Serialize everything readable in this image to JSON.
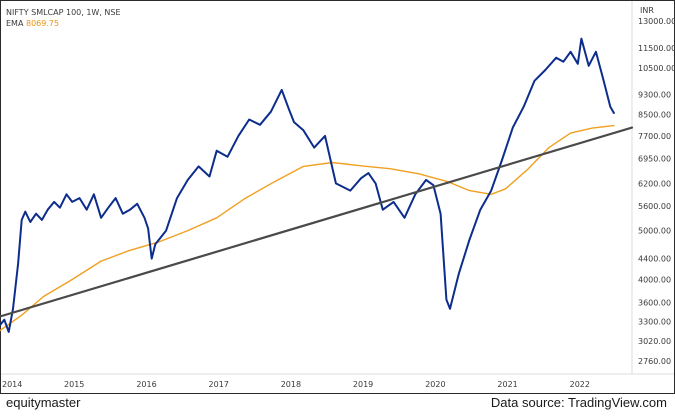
{
  "header": {
    "symbol_label": "NIFTY SMLCAP 100, 1W, NSE",
    "ema_label": "EMA",
    "ema_value": "8069.75"
  },
  "footer": {
    "brand": "equitymaster",
    "source": "Data source: TradingView.com"
  },
  "colors": {
    "price": "#0d2d8c",
    "ema": "#f0a020",
    "trendline": "#4a4a4a",
    "ema_text": "#e8940f"
  },
  "chart_data": {
    "type": "line",
    "title": "NIFTY SMLCAP 100, 1W, NSE",
    "ylabel": "INR",
    "y_scale": "log",
    "ylim": [
      2600,
      13800
    ],
    "xlim": [
      2014.0,
      2022.75
    ],
    "x_ticks": [
      "2014",
      "2015",
      "2016",
      "2017",
      "2018",
      "2019",
      "2020",
      "2021",
      "2022"
    ],
    "y_ticks": [
      2760.0,
      3020.0,
      3300.0,
      3600.0,
      4000.0,
      4400.0,
      5000.0,
      5600.0,
      6200.0,
      6950.0,
      7700.0,
      8500.0,
      9300.0,
      10500.0,
      11500.0,
      13000.0
    ],
    "y_tick_labels": [
      "2760.00",
      "3020.00",
      "3300.00",
      "3600.00",
      "4000.00",
      "4400.00",
      "5000.00",
      "5600.00",
      "6200.00",
      "6950.00",
      "7700.00",
      "8500.00",
      "9300.00",
      "10500.00",
      "11500.00",
      "13000.00"
    ],
    "series": [
      {
        "name": "NIFTY SMLCAP 100",
        "x": [
          2014.0,
          2014.06,
          2014.12,
          2014.18,
          2014.25,
          2014.3,
          2014.35,
          2014.42,
          2014.5,
          2014.58,
          2014.66,
          2014.75,
          2014.83,
          2014.92,
          2015.0,
          2015.1,
          2015.2,
          2015.3,
          2015.4,
          2015.5,
          2015.6,
          2015.7,
          2015.8,
          2015.9,
          2016.0,
          2016.05,
          2016.1,
          2016.15,
          2016.3,
          2016.45,
          2016.6,
          2016.75,
          2016.9,
          2017.0,
          2017.15,
          2017.3,
          2017.45,
          2017.6,
          2017.75,
          2017.9,
          2018.0,
          2018.07,
          2018.2,
          2018.35,
          2018.5,
          2018.65,
          2018.75,
          2018.85,
          2019.0,
          2019.1,
          2019.2,
          2019.3,
          2019.45,
          2019.6,
          2019.75,
          2019.9,
          2020.0,
          2020.1,
          2020.18,
          2020.23,
          2020.35,
          2020.5,
          2020.65,
          2020.8,
          2020.95,
          2021.1,
          2021.25,
          2021.4,
          2021.55,
          2021.7,
          2021.8,
          2021.9,
          2022.0,
          2022.05,
          2022.15,
          2022.25,
          2022.35,
          2022.45,
          2022.5
        ],
        "y": [
          3250,
          3330,
          3150,
          3500,
          4300,
          5250,
          5450,
          5200,
          5400,
          5250,
          5500,
          5700,
          5550,
          5900,
          5700,
          5800,
          5500,
          5900,
          5300,
          5550,
          5800,
          5400,
          5500,
          5650,
          5300,
          5050,
          4400,
          4700,
          5000,
          5800,
          6300,
          6700,
          6400,
          7200,
          7000,
          7700,
          8300,
          8100,
          8600,
          9500,
          8700,
          8200,
          7900,
          7300,
          7700,
          6200,
          6100,
          6000,
          6350,
          6500,
          6200,
          5500,
          5700,
          5300,
          5900,
          6300,
          6150,
          5400,
          3650,
          3500,
          4100,
          4800,
          5500,
          6000,
          6900,
          8000,
          8800,
          9900,
          10400,
          11000,
          10800,
          11300,
          10700,
          12000,
          10600,
          11300,
          10000,
          8800,
          8550
        ]
      },
      {
        "name": "EMA",
        "x": [
          2014.0,
          2014.3,
          2014.6,
          2015.0,
          2015.4,
          2015.8,
          2016.2,
          2016.6,
          2017.0,
          2017.4,
          2017.8,
          2018.2,
          2018.6,
          2019.0,
          2019.4,
          2019.8,
          2020.2,
          2020.5,
          2020.8,
          2021.0,
          2021.3,
          2021.6,
          2021.9,
          2022.2,
          2022.5
        ],
        "y": [
          3170,
          3400,
          3700,
          4000,
          4350,
          4570,
          4750,
          5000,
          5300,
          5800,
          6250,
          6700,
          6820,
          6720,
          6630,
          6480,
          6250,
          6000,
          5900,
          6050,
          6600,
          7300,
          7800,
          7980,
          8070
        ]
      },
      {
        "name": "trendline",
        "x": [
          2014.0,
          2022.75
        ],
        "y": [
          3380,
          8000
        ]
      }
    ],
    "grid": false,
    "legend": "top-left"
  }
}
